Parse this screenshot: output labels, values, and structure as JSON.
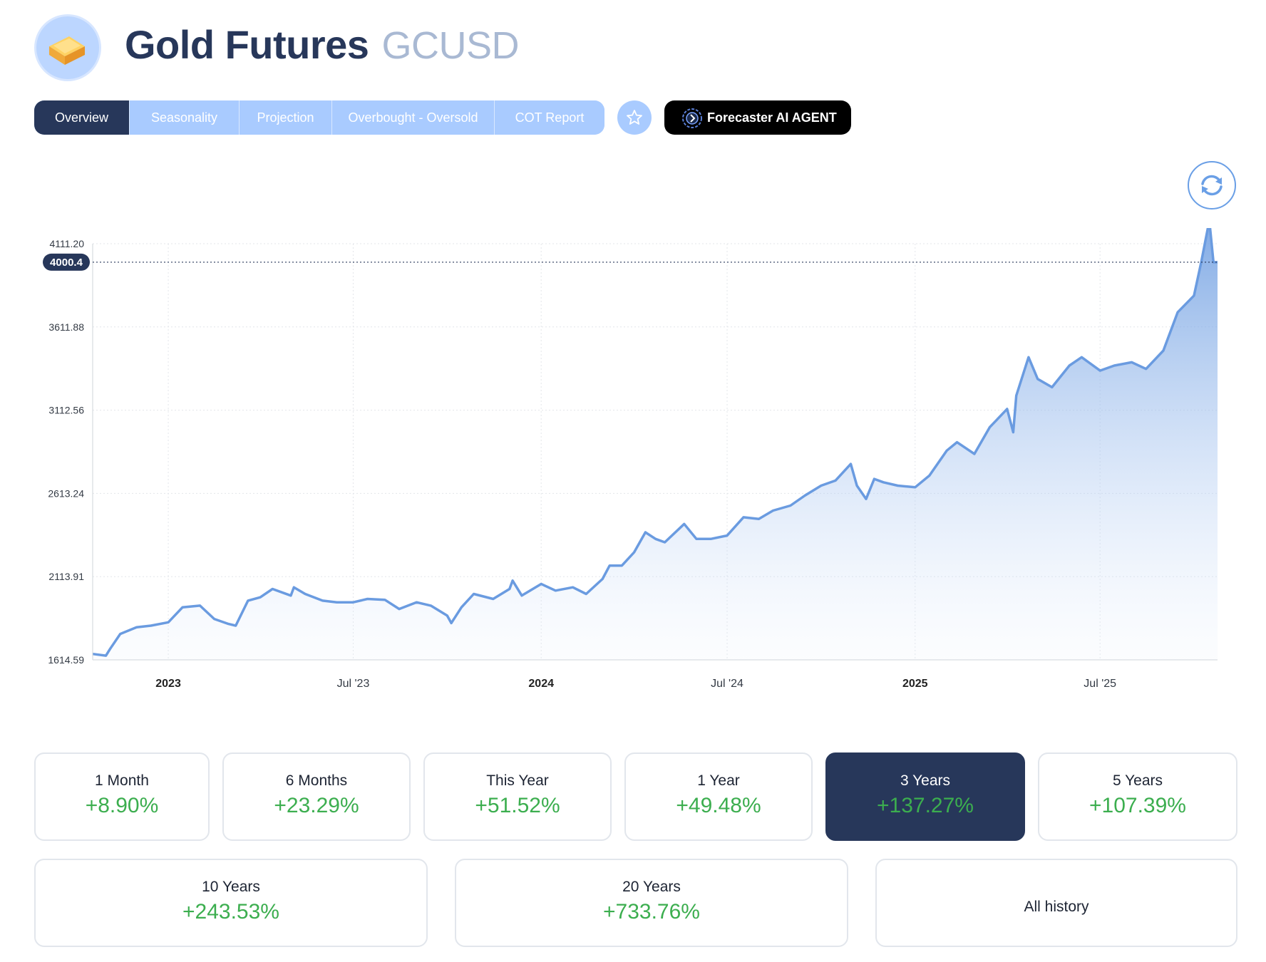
{
  "header": {
    "title": "Gold Futures",
    "ticker": "GCUSD",
    "logo_icon": "gold-bar-icon"
  },
  "tabs": [
    {
      "label": "Overview",
      "active": true
    },
    {
      "label": "Seasonality",
      "active": false
    },
    {
      "label": "Projection",
      "active": false
    },
    {
      "label": "Overbought - Oversold",
      "active": false
    },
    {
      "label": "COT Report",
      "active": false
    }
  ],
  "actions": {
    "favorite_icon": "star-icon",
    "ai_agent_label": "Forecaster AI AGENT",
    "ai_agent_icon": "ai-brain-icon",
    "refresh_icon": "refresh-icon"
  },
  "colors": {
    "brand_dark": "#27375a",
    "tab_light": "#a9cbff",
    "line": "#6a9be0",
    "positive": "#3cae4f"
  },
  "chart_data": {
    "type": "area",
    "title": "",
    "xlabel": "",
    "ylabel": "",
    "ylim": [
      1614.59,
      4111.2
    ],
    "xlim": [
      "2022-10-19",
      "2025-10-24"
    ],
    "yticks": [
      "4111.20",
      "3611.88",
      "3112.56",
      "2613.24",
      "2113.91",
      "1614.59"
    ],
    "xticks": [
      {
        "label": "2023",
        "date": "2023-01-01",
        "major": true
      },
      {
        "label": "Jul '23",
        "date": "2023-07-01",
        "major": false
      },
      {
        "label": "2024",
        "date": "2024-01-01",
        "major": true
      },
      {
        "label": "Jul '24",
        "date": "2024-07-01",
        "major": false
      },
      {
        "label": "2025",
        "date": "2025-01-01",
        "major": true
      },
      {
        "label": "Jul '25",
        "date": "2025-07-01",
        "major": false
      }
    ],
    "last_price_label": "4000.4",
    "last_price": 4000.4,
    "grid": true,
    "series": [
      {
        "x": [
          "2022-10-19",
          "2022-11-01",
          "2022-11-05",
          "2022-11-15",
          "2022-12-01",
          "2022-12-15",
          "2023-01-01",
          "2023-01-15",
          "2023-02-01",
          "2023-02-15",
          "2023-03-01",
          "2023-03-08",
          "2023-03-20",
          "2023-04-01",
          "2023-04-13",
          "2023-05-01",
          "2023-05-04",
          "2023-05-15",
          "2023-06-01",
          "2023-06-15",
          "2023-07-01",
          "2023-07-15",
          "2023-08-01",
          "2023-08-15",
          "2023-09-01",
          "2023-09-15",
          "2023-10-01",
          "2023-10-05",
          "2023-10-15",
          "2023-10-27",
          "2023-11-15",
          "2023-12-01",
          "2023-12-04",
          "2023-12-13",
          "2024-01-01",
          "2024-01-15",
          "2024-02-01",
          "2024-02-14",
          "2024-03-01",
          "2024-03-08",
          "2024-03-20",
          "2024-04-01",
          "2024-04-12",
          "2024-04-22",
          "2024-05-01",
          "2024-05-20",
          "2024-06-01",
          "2024-06-15",
          "2024-07-01",
          "2024-07-17",
          "2024-08-01",
          "2024-08-15",
          "2024-09-01",
          "2024-09-15",
          "2024-10-01",
          "2024-10-15",
          "2024-10-30",
          "2024-11-05",
          "2024-11-14",
          "2024-11-22",
          "2024-12-01",
          "2024-12-15",
          "2025-01-01",
          "2025-01-15",
          "2025-02-01",
          "2025-02-11",
          "2025-02-28",
          "2025-03-15",
          "2025-04-01",
          "2025-04-07",
          "2025-04-10",
          "2025-04-22",
          "2025-05-01",
          "2025-05-15",
          "2025-06-01",
          "2025-06-13",
          "2025-07-01",
          "2025-07-15",
          "2025-08-01",
          "2025-08-15",
          "2025-09-01",
          "2025-09-15",
          "2025-10-01",
          "2025-10-08",
          "2025-10-16",
          "2025-10-20",
          "2025-10-24"
        ],
        "values": [
          1650,
          1640,
          1680,
          1770,
          1810,
          1820,
          1840,
          1930,
          1940,
          1860,
          1830,
          1820,
          1970,
          1990,
          2040,
          2000,
          2050,
          2010,
          1970,
          1960,
          1960,
          1980,
          1975,
          1920,
          1960,
          1940,
          1880,
          1835,
          1930,
          2010,
          1980,
          2040,
          2090,
          2000,
          2070,
          2030,
          2050,
          2010,
          2100,
          2180,
          2180,
          2260,
          2380,
          2340,
          2320,
          2430,
          2340,
          2340,
          2360,
          2470,
          2460,
          2510,
          2540,
          2600,
          2660,
          2690,
          2790,
          2660,
          2580,
          2700,
          2680,
          2660,
          2650,
          2720,
          2870,
          2920,
          2850,
          3010,
          3120,
          2980,
          3200,
          3430,
          3300,
          3250,
          3380,
          3430,
          3350,
          3380,
          3400,
          3360,
          3470,
          3700,
          3800,
          4000,
          4250,
          4000,
          4000
        ]
      }
    ]
  },
  "periods": [
    {
      "label": "1 Month",
      "value": "+8.90%",
      "active": false
    },
    {
      "label": "6 Months",
      "value": "+23.29%",
      "active": false
    },
    {
      "label": "This Year",
      "value": "+51.52%",
      "active": false
    },
    {
      "label": "1 Year",
      "value": "+49.48%",
      "active": false
    },
    {
      "label": "3 Years",
      "value": "+137.27%",
      "active": true
    },
    {
      "label": "5 Years",
      "value": "+107.39%",
      "active": false
    },
    {
      "label": "10 Years",
      "value": "+243.53%",
      "active": false
    },
    {
      "label": "20 Years",
      "value": "+733.76%",
      "active": false
    },
    {
      "label": "All history",
      "value": "",
      "active": false
    }
  ]
}
